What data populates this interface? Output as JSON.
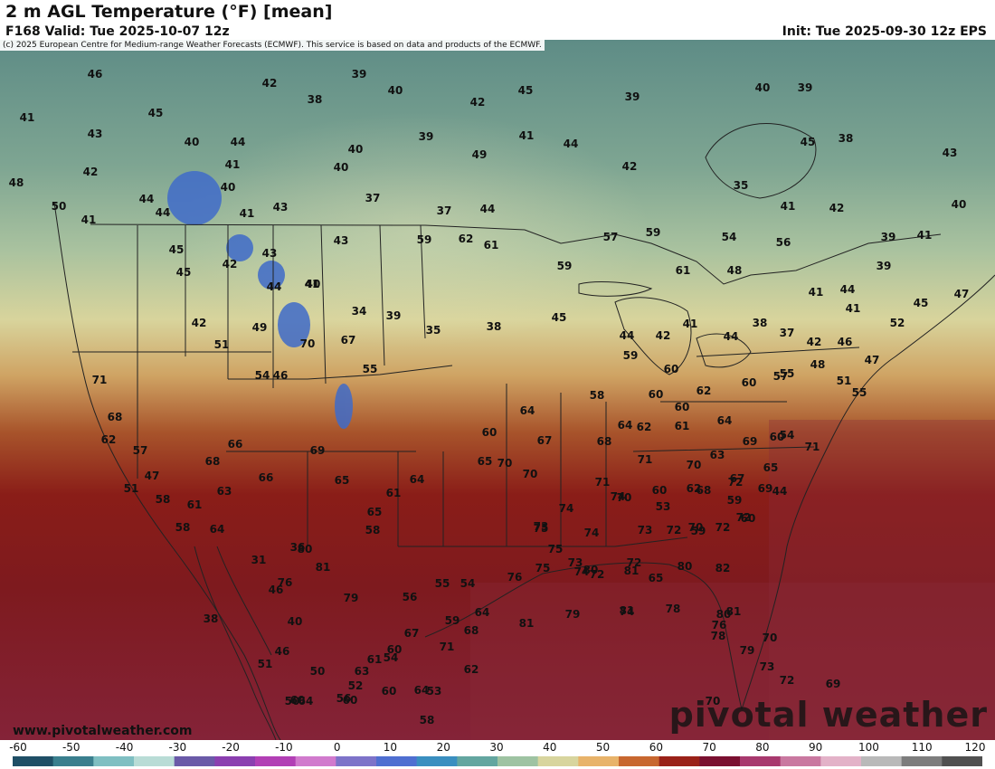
{
  "header": {
    "title": "2 m AGL Temperature (°F) [mean]",
    "valid": "F168 Valid: Tue 2025-10-07 12z",
    "init": "Init: Tue 2025-09-30 12z EPS"
  },
  "map": {
    "copyright": "(c) 2025 European Centre for Medium-range Weather Forecasts (ECMWF). This service is based on data and products of the ECMWF.",
    "watermark": "pivotal weather",
    "site": "www.pivotalweather.com",
    "temperature_labels": [
      "46",
      "41",
      "45",
      "43",
      "42",
      "48",
      "50",
      "41",
      "44",
      "44",
      "40",
      "44",
      "41",
      "40",
      "41",
      "43",
      "39",
      "42",
      "38",
      "40",
      "39",
      "40",
      "40",
      "37",
      "37",
      "44",
      "42",
      "45",
      "41",
      "49",
      "44",
      "42",
      "39",
      "40",
      "39",
      "45",
      "38",
      "43",
      "35",
      "41",
      "42",
      "40",
      "39",
      "41",
      "39",
      "41",
      "44",
      "41",
      "45",
      "47",
      "52",
      "56",
      "54",
      "59",
      "57",
      "61",
      "62",
      "59",
      "59",
      "61",
      "48",
      "45",
      "45",
      "42",
      "43",
      "44",
      "41",
      "42",
      "51",
      "49",
      "46",
      "43",
      "34",
      "39",
      "35",
      "38",
      "45",
      "44",
      "42",
      "41",
      "44",
      "38",
      "37",
      "42",
      "46",
      "48",
      "47",
      "51",
      "55",
      "55",
      "60",
      "57",
      "58",
      "59",
      "60",
      "60",
      "62",
      "60",
      "64",
      "62",
      "61",
      "64",
      "63",
      "69",
      "65",
      "44",
      "60",
      "59",
      "62",
      "60",
      "53",
      "59",
      "60",
      "54",
      "71",
      "71",
      "68",
      "62",
      "57",
      "47",
      "51",
      "58",
      "58",
      "61",
      "63",
      "64",
      "66",
      "68",
      "66",
      "69",
      "65",
      "65",
      "64",
      "61",
      "65",
      "60",
      "64",
      "67",
      "70",
      "70",
      "68",
      "71",
      "71",
      "70",
      "67",
      "69",
      "68",
      "70",
      "73",
      "72",
      "70",
      "72",
      "72",
      "72",
      "73",
      "74",
      "74",
      "74",
      "74",
      "75",
      "76",
      "75",
      "75",
      "73",
      "72",
      "72",
      "80",
      "82",
      "81",
      "80",
      "78",
      "78",
      "81",
      "80",
      "81",
      "81",
      "79",
      "74",
      "76",
      "79",
      "70",
      "73",
      "72",
      "69",
      "70",
      "65",
      "68",
      "71",
      "60",
      "62",
      "64",
      "59",
      "67",
      "55",
      "54",
      "56",
      "58",
      "79",
      "81",
      "80",
      "76",
      "36",
      "31",
      "38",
      "46",
      "40",
      "46",
      "50",
      "51",
      "50",
      "56",
      "61",
      "52",
      "54",
      "53",
      "58",
      "63",
      "64",
      "60",
      "60",
      "60",
      "64",
      "67",
      "70",
      "40",
      "54",
      "55"
    ]
  },
  "legend": {
    "ticks": [
      "-60",
      "-50",
      "-40",
      "-30",
      "-20",
      "-10",
      "0",
      "10",
      "20",
      "30",
      "40",
      "50",
      "60",
      "70",
      "80",
      "90",
      "100",
      "110",
      "120"
    ],
    "colors": [
      "#1f4f66",
      "#3a7f8e",
      "#7fbfc2",
      "#b9dcd6",
      "#6a5aa8",
      "#8b3fb0",
      "#b23fb5",
      "#d17acd",
      "#7d73c9",
      "#4f6fd1",
      "#3a8fc0",
      "#63a6a0",
      "#9ec3a2",
      "#d8d59e",
      "#e8b36a",
      "#c8672f",
      "#9a2118",
      "#7a1030",
      "#a8396e",
      "#c978a0",
      "#e3b2c8",
      "#b9b9b9",
      "#7d7d7d",
      "#505050"
    ]
  }
}
